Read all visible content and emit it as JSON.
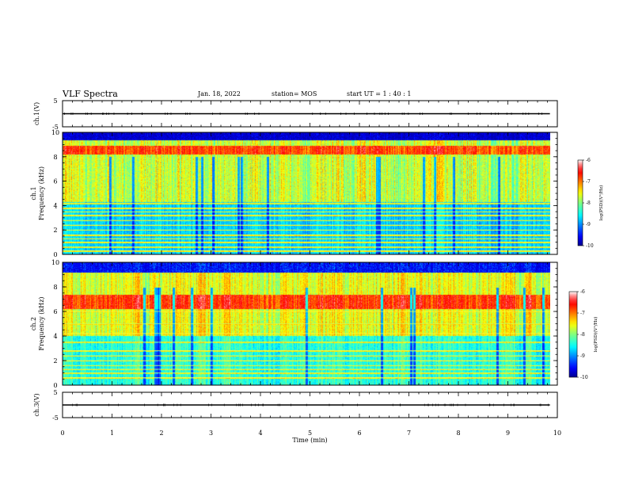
{
  "header": {
    "title": "VLF Spectra",
    "date": "Jan. 18, 2022",
    "station": "station= MOS",
    "start_ut": "start UT =  1 : 40 : 1"
  },
  "chart_data": [
    {
      "type": "line",
      "panel": "ch1-waveform",
      "ylabel": "ch.1(V)",
      "ylim": [
        -5,
        5
      ],
      "yticks": [
        "5",
        "-5"
      ],
      "xlim": [
        0,
        10
      ],
      "series": [
        {
          "values": [
            0,
            0
          ]
        }
      ]
    },
    {
      "type": "heatmap",
      "panel": "ch1-spectrogram",
      "ylabel": "ch.1\nFrequency (kHz)",
      "ylim": [
        0,
        10
      ],
      "yticks": [
        "0",
        "2",
        "4",
        "6",
        "8",
        "10"
      ],
      "xlim": [
        0,
        10
      ],
      "x_end": 9.85,
      "colorbar": {
        "label": "log(PSD)(V²/Hz)",
        "range": [
          -10,
          -6
        ],
        "ticks": [
          "-6",
          "-7",
          "-8",
          "-9",
          "-10"
        ]
      },
      "band_freqs_khz": [
        0.3,
        0.6,
        1.0,
        1.3,
        1.6,
        2.0,
        2.4,
        2.8,
        3.2,
        3.5,
        3.8,
        4.2
      ],
      "intense_band_khz": [
        8.2,
        8.9
      ]
    },
    {
      "type": "heatmap",
      "panel": "ch2-spectrogram",
      "ylabel": "ch.2\nFrequency (kHz)",
      "ylim": [
        0,
        10
      ],
      "yticks": [
        "0",
        "2",
        "4",
        "6",
        "8",
        "10"
      ],
      "xlim": [
        0,
        10
      ],
      "x_end": 9.85,
      "colorbar": {
        "label": "log(PSD)(V²/Hz)",
        "range": [
          -10,
          -6
        ],
        "ticks": [
          "-6",
          "-7",
          "-8",
          "-9",
          "-10"
        ]
      },
      "band_freqs_khz": [
        0.6,
        1.0,
        1.3,
        1.6,
        2.0,
        2.4,
        2.8,
        3.5,
        4.2,
        5.0,
        6.0
      ],
      "intense_band_khz": [
        6.2,
        7.4
      ]
    },
    {
      "type": "line",
      "panel": "ch3-waveform",
      "ylabel": "ch.3(V)",
      "ylim": [
        -5,
        5
      ],
      "yticks": [
        "5",
        "-5"
      ],
      "xlim": [
        0,
        10
      ],
      "series": [
        {
          "values": [
            0,
            0
          ]
        }
      ]
    }
  ],
  "xaxis": {
    "label": "Time (min)",
    "ticks": [
      "0",
      "1",
      "2",
      "3",
      "4",
      "5",
      "6",
      "7",
      "8",
      "9",
      "10"
    ]
  },
  "palette": {
    "jet": [
      "#00008f",
      "#0000ff",
      "#0080ff",
      "#00ffff",
      "#80ff80",
      "#ffff00",
      "#ff8000",
      "#ff0000",
      "#ff8080",
      "#ffffff"
    ],
    "line": "#000000"
  }
}
